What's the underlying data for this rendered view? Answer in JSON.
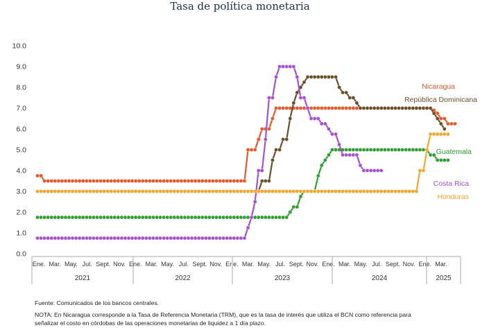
{
  "chart_data": {
    "type": "line",
    "title": "Tasa de política monetaria",
    "ylim": [
      0,
      10
    ],
    "yticks": [
      "0.0",
      "1.0",
      "2.0",
      "3.0",
      "4.0",
      "5.0",
      "6.0",
      "7.0",
      "8.0",
      "9.0",
      "10.0"
    ],
    "month_labels": [
      "Ene.",
      "Mar.",
      "May.",
      "Jul.",
      "Sept.",
      "Nov.",
      "Ene.",
      "Mar.",
      "May.",
      "Jul.",
      "Sept.",
      "Nov.",
      "Ene.",
      "Mar.",
      "May.",
      "Jul.",
      "Sept.",
      "Nov.",
      "Ene.",
      "Mar.",
      "May.",
      "Jul.",
      "Sept.",
      "Nov.",
      "Ene.",
      "Mar."
    ],
    "years": [
      "2021",
      "2022",
      "2023",
      "2024",
      "2025"
    ],
    "grid": false,
    "series": [
      {
        "name": "Nicaragua",
        "color": "#e8562a",
        "values": [
          3.75,
          3.75,
          3.5,
          3.5,
          3.5,
          3.5,
          3.5,
          3.5,
          3.5,
          3.5,
          3.5,
          3.5,
          3.5,
          3.5,
          3.5,
          3.5,
          3.5,
          3.5,
          3.5,
          3.5,
          3.5,
          3.5,
          3.5,
          3.5,
          3.5,
          3.5,
          3.5,
          3.5,
          3.5,
          3.5,
          3.5,
          3.5,
          3.5,
          3.5,
          3.5,
          3.5,
          3.5,
          3.5,
          3.5,
          3.5,
          3.5,
          3.5,
          3.5,
          3.5,
          3.5,
          3.5,
          3.5,
          3.5,
          3.5,
          3.5,
          3.5,
          3.5,
          3.5,
          3.5,
          3.5,
          3.5,
          3.5,
          3.5,
          3.5,
          3.5,
          5.0,
          5.0,
          5.0,
          5.5,
          6.0,
          6.0,
          6.0,
          6.5,
          7.0,
          7.0,
          7.0,
          7.0,
          7.0,
          7.0,
          7.0,
          7.0,
          7.0,
          7.0,
          7.0,
          7.0,
          7.0,
          7.0,
          7.0,
          7.0,
          7.0,
          7.0,
          7.0,
          7.0,
          7.0,
          7.0,
          7.0,
          7.0,
          7.0,
          7.0,
          7.0,
          7.0,
          7.0,
          7.0,
          7.0,
          7.0,
          7.0,
          7.0,
          7.0,
          7.0,
          7.0,
          7.0,
          7.0,
          7.0,
          7.0,
          7.0,
          7.0,
          7.0,
          7.0,
          6.9,
          6.75,
          6.5,
          6.5,
          6.25,
          6.25,
          6.25
        ]
      },
      {
        "name": "República Dominicana",
        "color": "#6b4d2a",
        "values": [
          null,
          null,
          null,
          null,
          null,
          null,
          null,
          null,
          null,
          null,
          null,
          null,
          null,
          null,
          null,
          null,
          null,
          null,
          null,
          null,
          null,
          null,
          null,
          null,
          null,
          null,
          null,
          null,
          null,
          null,
          null,
          null,
          null,
          null,
          null,
          null,
          null,
          null,
          null,
          null,
          null,
          null,
          null,
          null,
          null,
          null,
          null,
          null,
          null,
          null,
          null,
          null,
          null,
          null,
          null,
          null,
          null,
          null,
          null,
          null,
          3.0,
          3.0,
          3.0,
          3.0,
          3.5,
          3.5,
          3.5,
          4.5,
          5.0,
          5.0,
          5.5,
          5.5,
          6.5,
          7.25,
          7.75,
          8.0,
          8.25,
          8.5,
          8.5,
          8.5,
          8.5,
          8.5,
          8.5,
          8.5,
          8.5,
          8.5,
          8.0,
          7.75,
          7.75,
          7.5,
          7.5,
          7.25,
          7.0,
          7.0,
          7.0,
          7.0,
          7.0,
          7.0,
          7.0,
          7.0,
          7.0,
          7.0,
          7.0,
          7.0,
          7.0,
          7.0,
          7.0,
          7.0,
          7.0,
          7.0,
          7.0,
          7.0,
          7.0,
          6.75,
          6.5,
          6.25,
          6.0,
          null,
          null,
          null
        ]
      },
      {
        "name": "Guatemala",
        "color": "#2e9e2e",
        "values": [
          1.75,
          1.75,
          1.75,
          1.75,
          1.75,
          1.75,
          1.75,
          1.75,
          1.75,
          1.75,
          1.75,
          1.75,
          1.75,
          1.75,
          1.75,
          1.75,
          1.75,
          1.75,
          1.75,
          1.75,
          1.75,
          1.75,
          1.75,
          1.75,
          1.75,
          1.75,
          1.75,
          1.75,
          1.75,
          1.75,
          1.75,
          1.75,
          1.75,
          1.75,
          1.75,
          1.75,
          1.75,
          1.75,
          1.75,
          1.75,
          1.75,
          1.75,
          1.75,
          1.75,
          1.75,
          1.75,
          1.75,
          1.75,
          1.75,
          1.75,
          1.75,
          1.75,
          1.75,
          1.75,
          1.75,
          1.75,
          1.75,
          1.75,
          1.75,
          1.75,
          1.75,
          1.75,
          1.75,
          1.75,
          1.75,
          1.75,
          1.75,
          1.75,
          1.75,
          1.75,
          1.75,
          1.75,
          2.0,
          2.25,
          2.25,
          2.75,
          3.0,
          3.0,
          3.0,
          3.0,
          3.75,
          4.25,
          4.5,
          4.75,
          5.0,
          5.0,
          5.0,
          5.0,
          5.0,
          5.0,
          5.0,
          5.0,
          5.0,
          5.0,
          5.0,
          5.0,
          5.0,
          5.0,
          5.0,
          5.0,
          5.0,
          5.0,
          5.0,
          5.0,
          5.0,
          5.0,
          5.0,
          5.0,
          5.0,
          5.0,
          5.0,
          5.0,
          4.75,
          4.75,
          4.5,
          4.5,
          4.5,
          4.5
        ]
      },
      {
        "name": "Costa Rica",
        "color": "#a64fd1",
        "values": [
          0.75,
          0.75,
          0.75,
          0.75,
          0.75,
          0.75,
          0.75,
          0.75,
          0.75,
          0.75,
          0.75,
          0.75,
          0.75,
          0.75,
          0.75,
          0.75,
          0.75,
          0.75,
          0.75,
          0.75,
          0.75,
          0.75,
          0.75,
          0.75,
          0.75,
          0.75,
          0.75,
          0.75,
          0.75,
          0.75,
          0.75,
          0.75,
          0.75,
          0.75,
          0.75,
          0.75,
          0.75,
          0.75,
          0.75,
          0.75,
          0.75,
          0.75,
          0.75,
          0.75,
          0.75,
          0.75,
          0.75,
          0.75,
          0.75,
          0.75,
          0.75,
          0.75,
          0.75,
          0.75,
          0.75,
          0.75,
          0.75,
          0.75,
          0.75,
          0.75,
          1.25,
          1.75,
          2.5,
          4.0,
          4.0,
          5.5,
          7.5,
          7.5,
          8.5,
          9.0,
          9.0,
          9.0,
          9.0,
          9.0,
          8.5,
          7.5,
          7.5,
          7.0,
          6.5,
          6.5,
          6.5,
          6.25,
          6.25,
          6.0,
          5.75,
          5.75,
          5.25,
          4.75,
          4.75,
          4.75,
          4.75,
          4.75,
          4.25,
          4.0,
          4.0,
          4.0,
          4.0,
          4.0,
          4.0
        ]
      },
      {
        "name": "Honduras",
        "color": "#f5a52a",
        "values": [
          3.0,
          3.0,
          3.0,
          3.0,
          3.0,
          3.0,
          3.0,
          3.0,
          3.0,
          3.0,
          3.0,
          3.0,
          3.0,
          3.0,
          3.0,
          3.0,
          3.0,
          3.0,
          3.0,
          3.0,
          3.0,
          3.0,
          3.0,
          3.0,
          3.0,
          3.0,
          3.0,
          3.0,
          3.0,
          3.0,
          3.0,
          3.0,
          3.0,
          3.0,
          3.0,
          3.0,
          3.0,
          3.0,
          3.0,
          3.0,
          3.0,
          3.0,
          3.0,
          3.0,
          3.0,
          3.0,
          3.0,
          3.0,
          3.0,
          3.0,
          3.0,
          3.0,
          3.0,
          3.0,
          3.0,
          3.0,
          3.0,
          3.0,
          3.0,
          3.0,
          3.0,
          3.0,
          3.0,
          3.0,
          3.0,
          3.0,
          3.0,
          3.0,
          3.0,
          3.0,
          3.0,
          3.0,
          3.0,
          3.0,
          3.0,
          3.0,
          3.0,
          3.0,
          3.0,
          3.0,
          3.0,
          3.0,
          3.0,
          3.0,
          3.0,
          3.0,
          3.0,
          3.0,
          3.0,
          3.0,
          3.0,
          3.0,
          3.0,
          3.0,
          3.0,
          3.0,
          3.0,
          3.0,
          3.0,
          3.0,
          3.0,
          3.0,
          3.0,
          3.0,
          3.0,
          3.0,
          3.0,
          3.0,
          3.0,
          4.0,
          4.0,
          5.0,
          5.75,
          5.75,
          5.75,
          5.75,
          5.75,
          5.75
        ]
      }
    ]
  },
  "footnotes": {
    "source": "Fuente: Comunicados de los bancos centrales.",
    "note": "NOTA: En Nicaragua corresponde a la Tasa de Referencia Monetaria (TRM), que es la tasa de interés que utiliza el BCN como referencia para señalizar el costo en córdobas de las operaciones monetarias de liquidez a 1 día plazo."
  }
}
